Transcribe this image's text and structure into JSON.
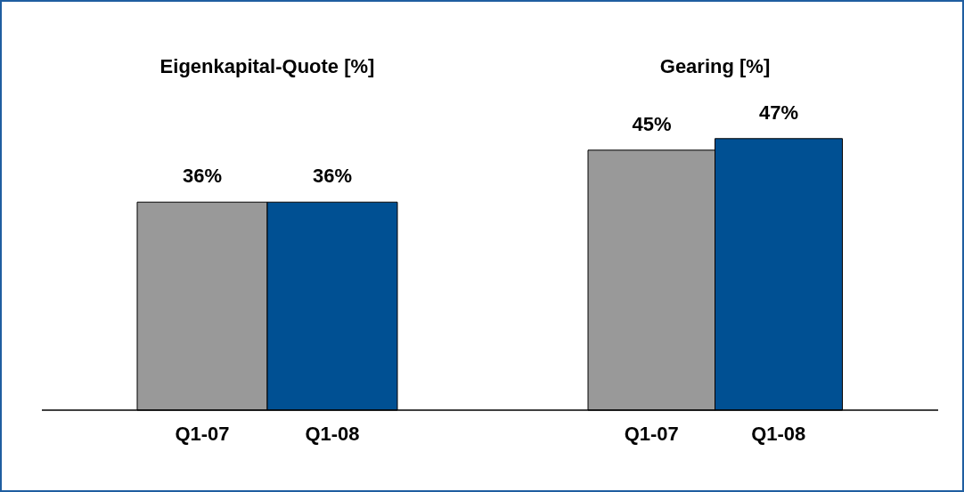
{
  "chart_data": [
    {
      "type": "bar",
      "title": "Eigenkapital-Quote [%]",
      "categories": [
        "Q1-07",
        "Q1-08"
      ],
      "values": [
        36,
        36
      ],
      "colors": [
        "#999999",
        "#005093"
      ],
      "value_labels": [
        "36%",
        "36%"
      ]
    },
    {
      "type": "bar",
      "title": "Gearing [%]",
      "categories": [
        "Q1-07",
        "Q1-08"
      ],
      "values": [
        45,
        47
      ],
      "colors": [
        "#999999",
        "#005093"
      ],
      "value_labels": [
        "45%",
        "47%"
      ]
    }
  ]
}
